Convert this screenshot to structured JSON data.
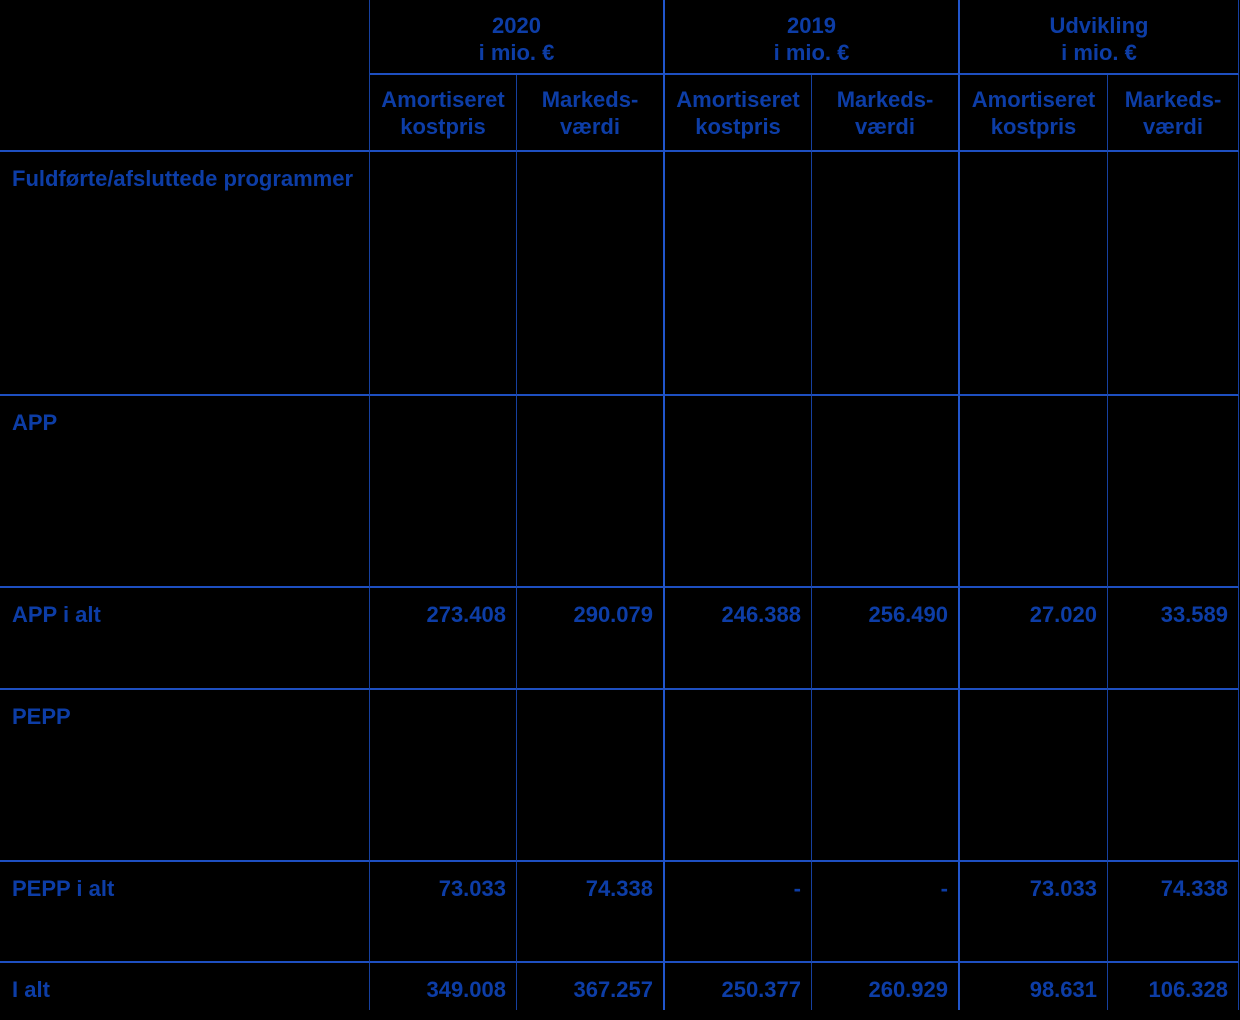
{
  "table": {
    "groups": [
      {
        "title": "2020",
        "unit": "i mio. €"
      },
      {
        "title": "2019",
        "unit": "i mio. €"
      },
      {
        "title": "Udvikling",
        "unit": "i mio. €"
      }
    ],
    "subheaders": [
      {
        "line1": "Amortiseret",
        "line2": "kostpris"
      },
      {
        "line1": "Markeds-",
        "line2": "værdi"
      },
      {
        "line1": "Amortiseret",
        "line2": "kostpris"
      },
      {
        "line1": "Markeds-",
        "line2": "værdi"
      },
      {
        "line1": "Amortiseret",
        "line2": "kostpris"
      },
      {
        "line1": "Markeds-",
        "line2": "værdi"
      }
    ],
    "rows": [
      {
        "label": "Fuldførte/afsluttede programmer",
        "values": [
          "",
          "",
          "",
          "",
          "",
          ""
        ]
      },
      {
        "label": "APP",
        "values": [
          "",
          "",
          "",
          "",
          "",
          ""
        ]
      },
      {
        "label": "APP i alt",
        "values": [
          "273.408",
          "290.079",
          "246.388",
          "256.490",
          "27.020",
          "33.589"
        ]
      },
      {
        "label": "PEPP",
        "values": [
          "",
          "",
          "",
          "",
          "",
          ""
        ]
      },
      {
        "label": "PEPP i alt",
        "values": [
          "73.033",
          "74.338",
          "-",
          "-",
          "73.033",
          "74.338"
        ]
      },
      {
        "label": "I alt",
        "values": [
          "349.008",
          "367.257",
          "250.377",
          "260.929",
          "98.631",
          "106.328"
        ]
      }
    ]
  },
  "colors": {
    "background": "#000000",
    "text": "#0d3da6",
    "grid_line_thin": "#16409f",
    "grid_line_group": "#2156cd",
    "grid_line_horizontal": "#1e4fc0"
  }
}
